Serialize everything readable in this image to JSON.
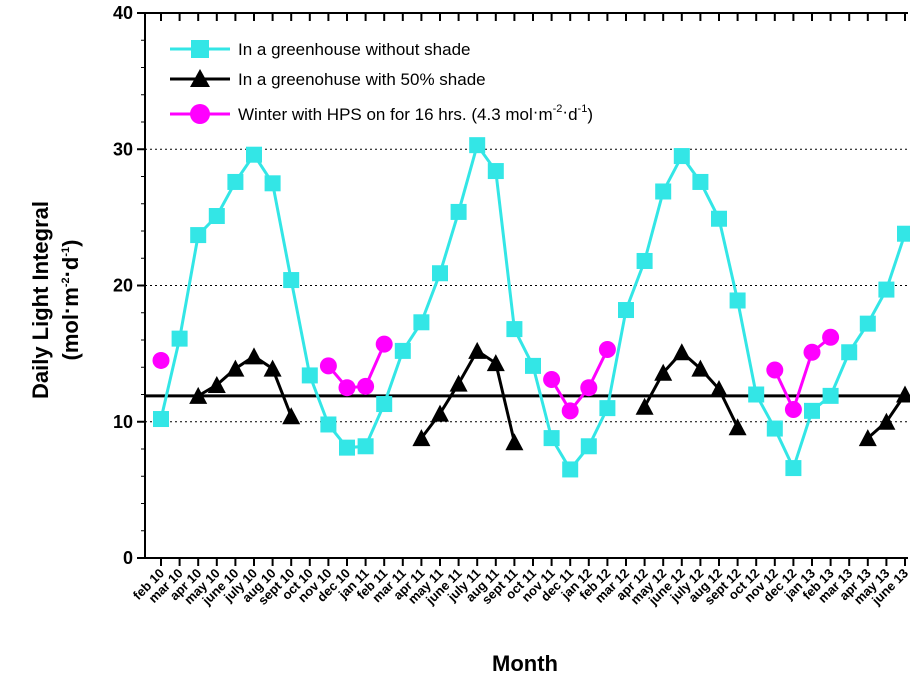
{
  "chart_data": {
    "type": "line",
    "title": "",
    "xlabel": "Month",
    "ylabel_line1": "Daily Light Integral",
    "ylabel_line2": {
      "open": "(mol",
      "dot1": "·",
      "m": "m",
      "sup1": "-2",
      "dot2": "·",
      "d": "d",
      "sup2": "-1",
      "close": ")"
    },
    "ylim": [
      0,
      40
    ],
    "yticks": [
      "0",
      "10",
      "20",
      "30",
      "40"
    ],
    "grid": "horizontal dotted at 10, 20, 30",
    "legend_position": "top-left",
    "categories": [
      "feb 10",
      "mar 10",
      "apr 10",
      "may 10",
      "june 10",
      "july 10",
      "aug 10",
      "sept 10",
      "oct 10",
      "nov 10",
      "dec 10",
      "jan 11",
      "feb 11",
      "mar 11",
      "apr 11",
      "may 11",
      "june 11",
      "july 11",
      "aug 11",
      "sept 11",
      "oct 11",
      "nov 11",
      "dec 11",
      "jan 12",
      "feb 12",
      "mar 12",
      "apr 12",
      "may 12",
      "june 12",
      "july 12",
      "aug 12",
      "sept 12",
      "oct 12",
      "nov 12",
      "dec 12",
      "jan 13",
      "feb 13",
      "mar 13",
      "apr 13",
      "may 13",
      "june 13"
    ],
    "reference_line": {
      "y": 11.9,
      "color": "#000000"
    },
    "series": [
      {
        "name": "In a greenhouse without shade",
        "color": "#33e6e6",
        "marker": "square",
        "values": [
          10.2,
          16.1,
          23.7,
          25.1,
          27.6,
          29.6,
          27.5,
          20.4,
          13.4,
          9.8,
          8.1,
          8.2,
          11.3,
          15.2,
          17.3,
          20.9,
          25.4,
          30.3,
          28.4,
          16.8,
          14.1,
          8.8,
          6.5,
          8.2,
          11.0,
          18.2,
          21.8,
          26.9,
          29.5,
          27.6,
          24.9,
          18.9,
          12.0,
          9.5,
          6.6,
          10.8,
          11.9,
          15.1,
          17.2,
          19.7,
          23.8
        ]
      },
      {
        "name": "In a greenohuse with 50% shade",
        "color": "#000000",
        "marker": "triangle",
        "values": [
          null,
          null,
          11.9,
          12.7,
          13.9,
          14.8,
          13.9,
          10.4,
          null,
          null,
          null,
          null,
          null,
          null,
          8.8,
          10.6,
          12.8,
          15.2,
          14.3,
          8.5,
          null,
          null,
          null,
          null,
          null,
          null,
          11.1,
          13.6,
          15.1,
          13.9,
          12.4,
          9.6,
          null,
          null,
          null,
          null,
          null,
          null,
          8.8,
          10.0,
          12.0
        ]
      },
      {
        "name": {
          "main": "Winter with HPS on for 16 hrs. (4.3 mol",
          "dot1": "·",
          "m": "m",
          "sup1": "-2",
          "dot2": "·",
          "d": "d",
          "sup2": "-1",
          "close": ")"
        },
        "color": "#ff00ff",
        "marker": "circle",
        "values": [
          14.5,
          null,
          null,
          null,
          null,
          null,
          null,
          null,
          null,
          14.1,
          12.5,
          12.6,
          15.7,
          null,
          null,
          null,
          null,
          null,
          null,
          null,
          null,
          13.1,
          10.8,
          12.5,
          15.3,
          null,
          null,
          null,
          null,
          null,
          null,
          null,
          null,
          13.8,
          10.9,
          15.1,
          16.2,
          null,
          null,
          null,
          null
        ],
        "segments_break_after": [
          0
        ]
      }
    ]
  }
}
